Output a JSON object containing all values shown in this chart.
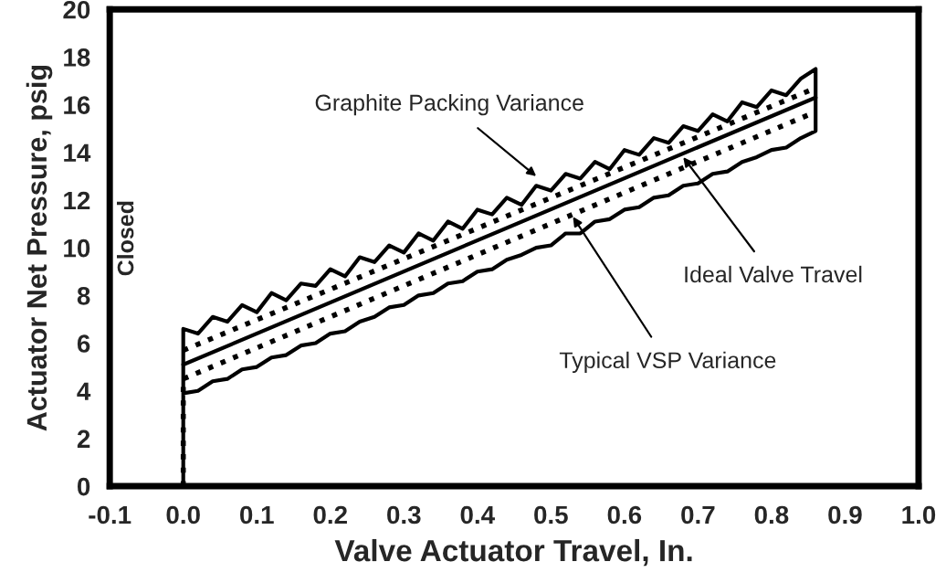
{
  "chart_data": {
    "type": "line",
    "xlabel": "Valve Actuator Travel, In.",
    "ylabel": "Actuator Net Pressure, psig",
    "xlim": [
      -0.1,
      1.0
    ],
    "xticks": [
      -0.1,
      {
        "value": 0,
        "label": "0.0"
      },
      0.1,
      0.2,
      0.3,
      0.4,
      0.5,
      0.6,
      0.7,
      0.8,
      0.9,
      {
        "value": 1,
        "label": "1.0"
      }
    ],
    "ylim": [
      0,
      20
    ],
    "yticks": [
      0,
      2,
      4,
      6,
      8,
      10,
      12,
      14,
      16,
      18,
      20
    ],
    "grid": false,
    "legend": false,
    "marker": "none",
    "series": [
      {
        "color": "#000000",
        "line_style": "solid",
        "x": [
          0,
          0,
          0.02,
          0.04,
          0.06,
          0.08,
          0.1,
          0.12,
          0.14,
          0.16,
          0.18,
          0.2,
          0.22,
          0.24,
          0.26,
          0.28,
          0.3,
          0.32,
          0.34,
          0.36,
          0.38,
          0.4,
          0.42,
          0.44,
          0.46,
          0.48,
          0.5,
          0.52,
          0.54,
          0.56,
          0.58,
          0.6,
          0.62,
          0.64,
          0.66,
          0.68,
          0.7,
          0.72,
          0.74,
          0.76,
          0.78,
          0.8,
          0.82,
          0.84,
          0.86,
          0.86,
          0.84,
          0.82,
          0.8,
          0.78,
          0.76,
          0.74,
          0.72,
          0.7,
          0.68,
          0.66,
          0.64,
          0.62,
          0.6,
          0.58,
          0.56,
          0.54,
          0.52,
          0.5,
          0.48,
          0.46,
          0.44,
          0.42,
          0.4,
          0.38,
          0.36,
          0.34,
          0.32,
          0.3,
          0.28,
          0.26,
          0.24,
          0.22,
          0.2,
          0.18,
          0.16,
          0.14,
          0.12,
          0.1,
          0.08,
          0.06,
          0.04,
          0.02,
          0
        ],
        "values": [
          0,
          6.6,
          6.4,
          7.1,
          6.9,
          7.6,
          7.3,
          8.1,
          7.8,
          8.5,
          8.4,
          9.1,
          8.8,
          9.6,
          9.4,
          10.1,
          9.8,
          10.6,
          10.3,
          11.1,
          10.8,
          11.6,
          11.4,
          12.1,
          11.8,
          12.6,
          12.4,
          13.1,
          12.9,
          13.6,
          13.3,
          14.1,
          13.9,
          14.6,
          14.4,
          15.1,
          14.9,
          15.6,
          15.3,
          16.1,
          15.9,
          16.6,
          16.4,
          17.1,
          17.5,
          14.9,
          14.6,
          14.2,
          14.1,
          13.8,
          13.6,
          13.2,
          13.1,
          12.7,
          12.6,
          12.2,
          12.1,
          11.7,
          11.6,
          11.2,
          11.1,
          10.6,
          10.6,
          10.1,
          10.0,
          9.7,
          9.5,
          9.1,
          9.0,
          8.6,
          8.5,
          8.1,
          8.0,
          7.6,
          7.5,
          7.1,
          6.9,
          6.5,
          6.4,
          6.0,
          5.9,
          5.5,
          5.4,
          5.0,
          4.9,
          4.5,
          4.4,
          4.0,
          3.9
        ]
      },
      {
        "color": "#000000",
        "line_style": "solid",
        "x": [
          0,
          0.86
        ],
        "values": [
          5.1,
          16.3
        ]
      },
      {
        "color": "#000000",
        "line_style": "dotted",
        "x": [
          0,
          0.86
        ],
        "values": [
          5.7,
          16.7
        ]
      },
      {
        "color": "#000000",
        "line_style": "dotted",
        "x": [
          0,
          0,
          0.86
        ],
        "values": [
          0,
          4.5,
          15.7
        ]
      }
    ],
    "annotations": [
      {
        "text": "Graphite Packing Variance",
        "x": 0.48,
        "y": 13.0
      },
      {
        "text": "Ideal Valve Travel",
        "x": 0.68,
        "y": 13.8
      },
      {
        "text": "Typical VSP Variance",
        "x": 0.53,
        "y": 11.3
      },
      "Closed"
    ]
  }
}
